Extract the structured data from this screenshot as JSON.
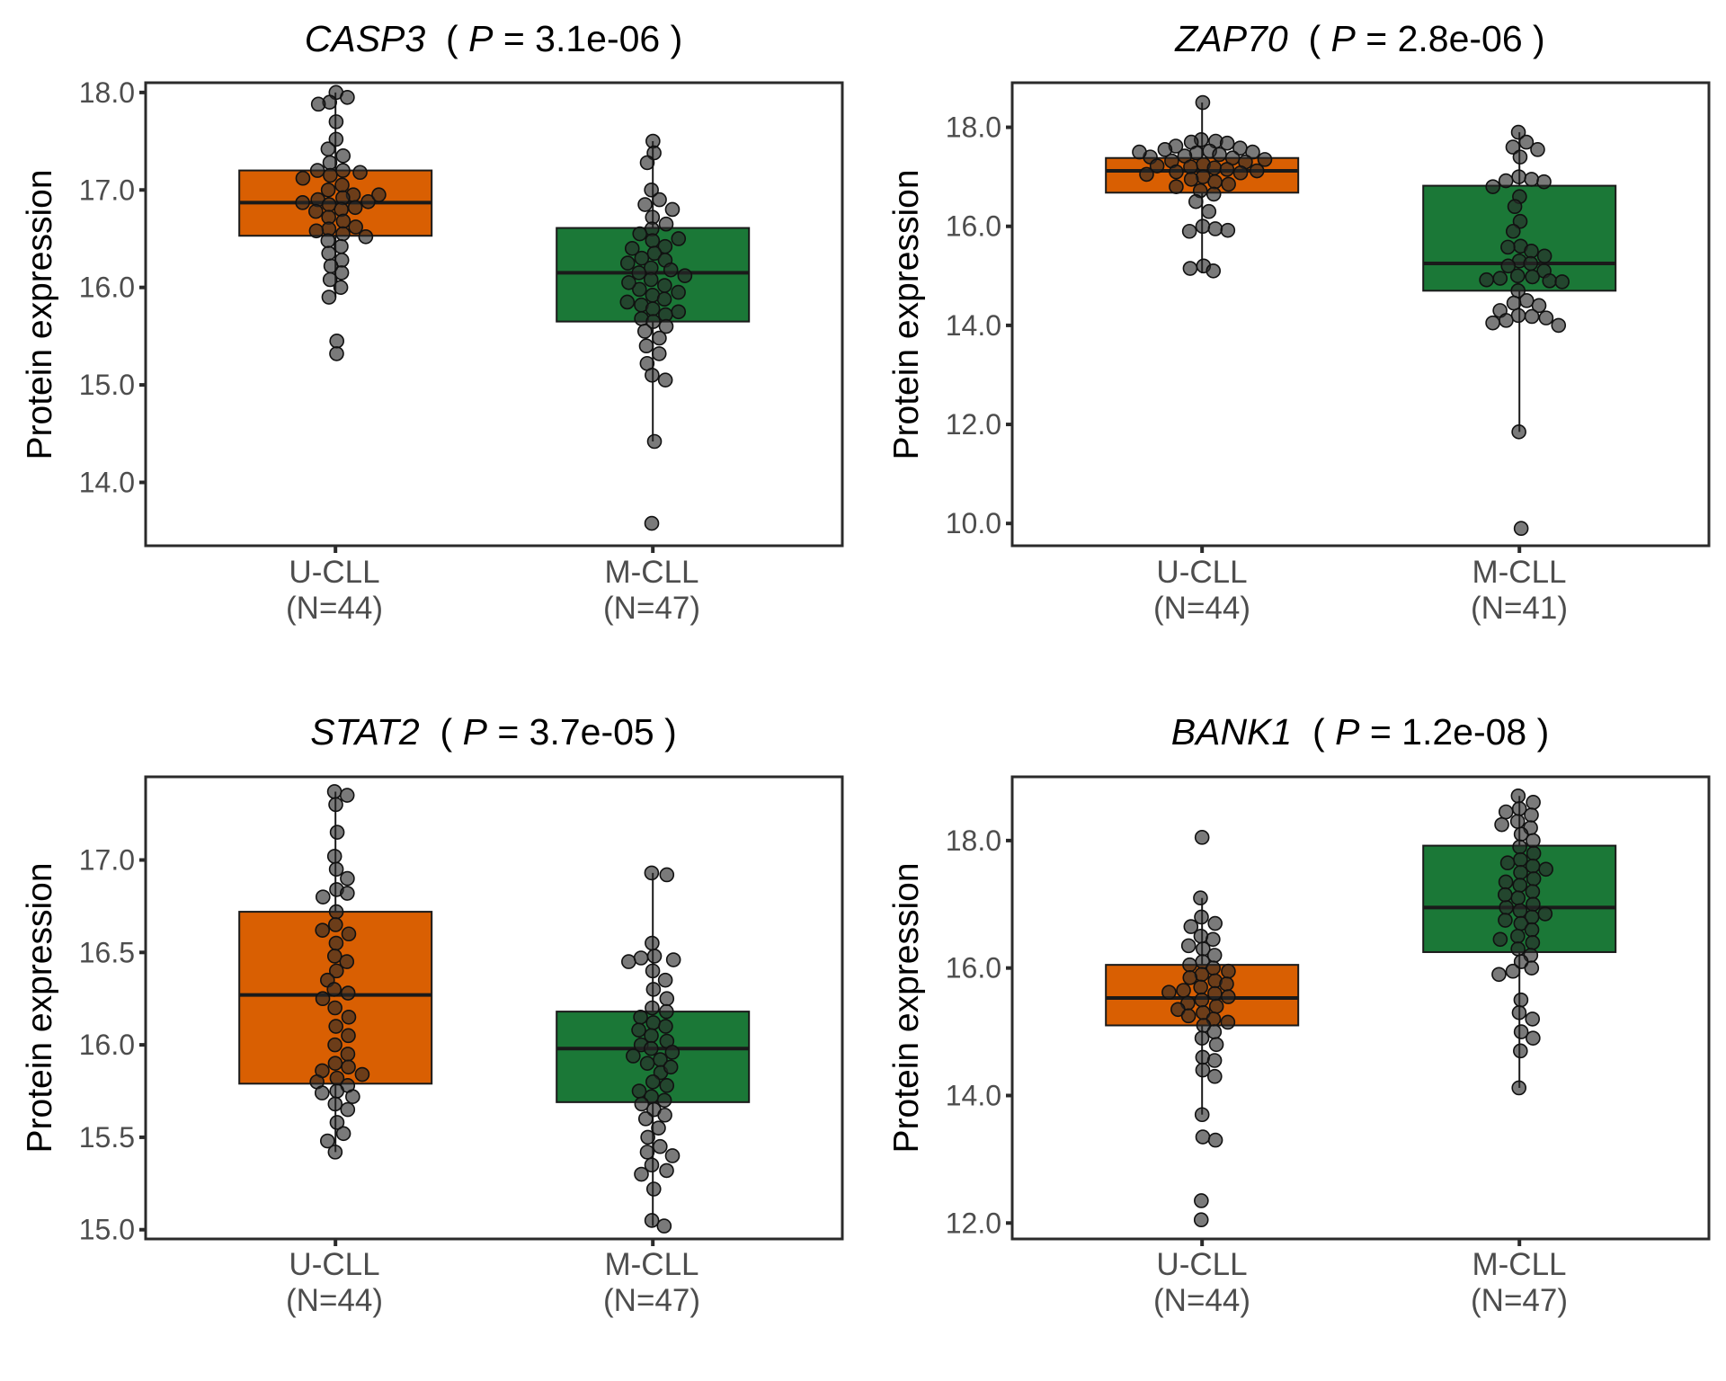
{
  "figure": {
    "ylabel": "Protein expression"
  },
  "chart_data": [
    {
      "type": "box",
      "gene": "CASP3",
      "title_open": "(",
      "p_symbol": "P",
      "p_text": " = 3.1e-06 )",
      "title": "CASP3 ( P = 3.1e-06 )",
      "ylabel": "Protein expression",
      "ylim": [
        13.35,
        18.1
      ],
      "yticks": [
        14.0,
        15.0,
        16.0,
        17.0,
        18.0
      ],
      "ytick_labels": [
        "14.0",
        "15.0",
        "16.0",
        "17.0",
        "18.0"
      ],
      "categories": [
        "U-CLL",
        "M-CLL"
      ],
      "category_counts": [
        "(N=44)",
        "(N=47)"
      ],
      "colors": {
        "U-CLL": "#d95f02",
        "M-CLL": "#1b7837"
      },
      "boxes": [
        {
          "group": "U-CLL",
          "q1": 16.53,
          "median": 16.87,
          "q3": 17.2,
          "whisker_low": 15.9,
          "whisker_high": 18.0
        },
        {
          "group": "M-CLL",
          "q1": 15.65,
          "median": 16.15,
          "q3": 16.61,
          "whisker_low": 14.42,
          "whisker_high": 17.5
        }
      ],
      "points": [
        [
          18.0,
          17.95,
          17.9,
          17.88,
          17.7,
          17.52,
          17.42,
          17.35,
          17.28,
          17.2,
          17.2,
          17.18,
          17.15,
          17.12,
          17.05,
          17.0,
          16.95,
          16.92,
          16.9,
          16.88,
          16.87,
          16.85,
          16.82,
          16.8,
          16.78,
          16.72,
          16.68,
          16.62,
          16.6,
          16.58,
          16.55,
          16.52,
          16.48,
          16.42,
          16.35,
          16.28,
          16.22,
          16.15,
          16.08,
          16.0,
          15.9,
          15.45,
          15.32,
          16.95
        ],
        [
          17.5,
          17.38,
          17.28,
          17.0,
          16.9,
          16.85,
          16.8,
          16.72,
          16.65,
          16.6,
          16.55,
          16.48,
          16.42,
          16.35,
          16.28,
          16.2,
          16.18,
          16.15,
          16.12,
          16.08,
          16.02,
          15.98,
          15.92,
          15.88,
          15.82,
          15.78,
          15.72,
          15.68,
          15.65,
          15.6,
          15.55,
          15.48,
          15.4,
          15.32,
          15.22,
          15.1,
          15.05,
          14.42,
          13.58,
          16.25,
          16.3,
          15.95,
          16.4,
          15.75,
          16.5,
          15.85,
          16.05
        ]
      ]
    },
    {
      "type": "box",
      "gene": "ZAP70",
      "title_open": "(",
      "p_symbol": "P",
      "p_text": " = 2.8e-06 )",
      "title": "ZAP70 ( P = 2.8e-06 )",
      "ylabel": "Protein expression",
      "ylim": [
        9.55,
        18.9
      ],
      "yticks": [
        10.0,
        12.0,
        14.0,
        16.0,
        18.0
      ],
      "ytick_labels": [
        "10.0",
        "12.0",
        "14.0",
        "16.0",
        "18.0"
      ],
      "categories": [
        "U-CLL",
        "M-CLL"
      ],
      "category_counts": [
        "(N=44)",
        "(N=41)"
      ],
      "colors": {
        "U-CLL": "#d95f02",
        "M-CLL": "#1b7837"
      },
      "boxes": [
        {
          "group": "U-CLL",
          "q1": 16.68,
          "median": 17.12,
          "q3": 17.38,
          "whisker_low": 15.05,
          "whisker_high": 18.5
        },
        {
          "group": "M-CLL",
          "q1": 14.7,
          "median": 15.25,
          "q3": 16.82,
          "whisker_low": 11.85,
          "whisker_high": 17.9
        }
      ],
      "points": [
        [
          18.5,
          17.75,
          17.72,
          17.7,
          17.68,
          17.62,
          17.58,
          17.55,
          17.52,
          17.5,
          17.48,
          17.45,
          17.42,
          17.4,
          17.38,
          17.35,
          17.32,
          17.3,
          17.25,
          17.22,
          17.2,
          17.18,
          17.15,
          17.12,
          17.1,
          17.08,
          17.05,
          17.0,
          16.95,
          16.9,
          16.85,
          16.8,
          16.72,
          16.65,
          16.5,
          16.3,
          16.0,
          15.95,
          15.9,
          15.92,
          15.2,
          15.15,
          15.1,
          17.5
        ],
        [
          17.9,
          17.7,
          17.6,
          17.55,
          17.4,
          17.0,
          16.95,
          16.92,
          16.9,
          16.8,
          16.6,
          16.4,
          16.1,
          15.9,
          15.6,
          15.58,
          15.5,
          15.4,
          15.3,
          15.25,
          15.2,
          15.1,
          15.0,
          14.98,
          14.95,
          14.92,
          14.9,
          14.88,
          14.7,
          14.5,
          14.45,
          14.4,
          14.3,
          14.2,
          14.18,
          14.15,
          14.1,
          14.05,
          14.0,
          11.85,
          9.9
        ]
      ]
    },
    {
      "type": "box",
      "gene": "STAT2",
      "title_open": "(",
      "p_symbol": "P",
      "p_text": " = 3.7e-05 )",
      "title": "STAT2 ( P = 3.7e-05 )",
      "ylabel": "Protein expression",
      "ylim": [
        14.95,
        17.45
      ],
      "yticks": [
        15.0,
        15.5,
        16.0,
        16.5,
        17.0
      ],
      "ytick_labels": [
        "15.0",
        "15.5",
        "16.0",
        "16.5",
        "17.0"
      ],
      "categories": [
        "U-CLL",
        "M-CLL"
      ],
      "category_counts": [
        "(N=44)",
        "(N=47)"
      ],
      "colors": {
        "U-CLL": "#d95f02",
        "M-CLL": "#1b7837"
      },
      "boxes": [
        {
          "group": "U-CLL",
          "q1": 15.79,
          "median": 16.27,
          "q3": 16.72,
          "whisker_low": 15.42,
          "whisker_high": 17.37
        },
        {
          "group": "M-CLL",
          "q1": 15.69,
          "median": 15.98,
          "q3": 16.18,
          "whisker_low": 15.02,
          "whisker_high": 16.93
        }
      ],
      "points": [
        [
          17.37,
          17.35,
          17.3,
          17.15,
          17.02,
          16.95,
          16.9,
          16.84,
          16.82,
          16.8,
          16.72,
          16.65,
          16.6,
          16.55,
          16.48,
          16.45,
          16.4,
          16.35,
          16.3,
          16.28,
          16.25,
          16.2,
          16.15,
          16.1,
          16.05,
          16.0,
          15.95,
          15.9,
          15.88,
          15.86,
          15.84,
          15.82,
          15.8,
          15.78,
          15.75,
          15.74,
          15.72,
          15.68,
          15.65,
          15.58,
          15.52,
          15.48,
          15.42,
          16.62
        ],
        [
          16.93,
          16.92,
          16.55,
          16.48,
          16.47,
          16.46,
          16.45,
          16.4,
          16.3,
          16.25,
          16.2,
          16.18,
          16.15,
          16.12,
          16.1,
          16.05,
          16.02,
          16.0,
          15.98,
          15.96,
          15.94,
          15.92,
          15.9,
          15.85,
          15.8,
          15.78,
          15.75,
          15.72,
          15.7,
          15.68,
          15.65,
          15.6,
          15.55,
          15.5,
          15.45,
          15.42,
          15.4,
          15.35,
          15.32,
          15.3,
          15.22,
          15.05,
          15.02,
          16.08,
          15.88,
          15.62,
          16.35
        ]
      ]
    },
    {
      "type": "box",
      "gene": "BANK1",
      "title_open": "(",
      "p_symbol": "P",
      "p_text": " = 1.2e-08 )",
      "title": "BANK1 ( P = 1.2e-08 )",
      "ylabel": "Protein expression",
      "ylim": [
        11.75,
        19.0
      ],
      "yticks": [
        12.0,
        14.0,
        16.0,
        18.0
      ],
      "ytick_labels": [
        "12.0",
        "14.0",
        "16.0",
        "18.0"
      ],
      "categories": [
        "U-CLL",
        "M-CLL"
      ],
      "category_counts": [
        "(N=44)",
        "(N=47)"
      ],
      "colors": {
        "U-CLL": "#d95f02",
        "M-CLL": "#1b7837"
      },
      "boxes": [
        {
          "group": "U-CLL",
          "q1": 15.1,
          "median": 15.53,
          "q3": 16.05,
          "whisker_low": 13.7,
          "whisker_high": 17.1
        },
        {
          "group": "M-CLL",
          "q1": 16.25,
          "median": 16.95,
          "q3": 17.92,
          "whisker_low": 14.12,
          "whisker_high": 18.7
        }
      ],
      "points": [
        [
          18.05,
          17.1,
          16.8,
          16.7,
          16.65,
          16.5,
          16.45,
          16.35,
          16.3,
          16.2,
          16.1,
          16.05,
          16.0,
          15.95,
          15.9,
          15.85,
          15.8,
          15.75,
          15.7,
          15.65,
          15.6,
          15.55,
          15.5,
          15.45,
          15.4,
          15.35,
          15.3,
          15.25,
          15.2,
          15.15,
          15.1,
          15.0,
          14.9,
          14.8,
          14.6,
          14.55,
          14.4,
          14.3,
          13.7,
          13.35,
          13.3,
          12.35,
          12.05,
          15.62
        ],
        [
          18.7,
          18.6,
          18.5,
          18.4,
          18.3,
          18.2,
          18.1,
          18.0,
          17.9,
          17.8,
          17.7,
          17.6,
          17.5,
          17.4,
          17.3,
          17.2,
          17.1,
          17.0,
          16.95,
          16.9,
          16.8,
          16.7,
          16.6,
          16.5,
          16.4,
          16.3,
          16.2,
          16.1,
          16.0,
          15.95,
          15.9,
          15.5,
          15.3,
          15.2,
          15.0,
          14.9,
          14.7,
          14.12,
          17.35,
          17.65,
          16.75,
          17.15,
          18.25,
          16.45,
          17.55,
          16.85,
          18.45
        ]
      ]
    }
  ]
}
